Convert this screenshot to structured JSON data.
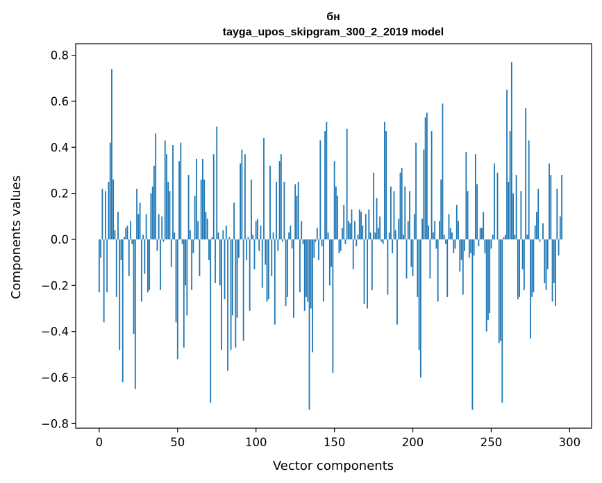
{
  "chart_data": {
    "type": "bar",
    "title_line1": "бн",
    "title_line2": "tayga_upos_skipgram_300_2_2019 model",
    "xlabel": "Vector components",
    "ylabel": "Components values",
    "xlim": [
      -15,
      314
    ],
    "ylim": [
      -0.82,
      0.85
    ],
    "x_ticks": [
      0,
      50,
      100,
      150,
      200,
      250,
      300
    ],
    "x_tick_labels": [
      "0",
      "50",
      "100",
      "150",
      "200",
      "250",
      "300"
    ],
    "y_ticks": [
      -0.8,
      -0.6,
      -0.4,
      -0.2,
      0.0,
      0.2,
      0.4,
      0.6,
      0.8
    ],
    "y_tick_labels": [
      "−0.8",
      "−0.6",
      "−0.4",
      "−0.2",
      "0.0",
      "0.2",
      "0.4",
      "0.6",
      "0.8"
    ],
    "bar_color": "#1f77b4",
    "values": [
      -0.23,
      -0.08,
      0.22,
      -0.36,
      0.21,
      -0.23,
      0.25,
      0.42,
      0.74,
      0.26,
      0.04,
      -0.25,
      0.12,
      -0.48,
      -0.09,
      -0.62,
      0.01,
      0.05,
      0.06,
      -0.16,
      0.08,
      -0.02,
      -0.41,
      -0.65,
      0.22,
      0.11,
      0.16,
      -0.27,
      0.02,
      -0.15,
      0.11,
      -0.23,
      -0.22,
      0.2,
      0.23,
      0.32,
      0.46,
      -0.05,
      0.11,
      -0.22,
      0.1,
      -0.01,
      0.43,
      0.37,
      0.25,
      0.21,
      -0.12,
      0.41,
      0.03,
      -0.36,
      -0.52,
      0.34,
      0.42,
      -0.02,
      -0.47,
      -0.2,
      -0.33,
      0.28,
      0.04,
      -0.22,
      -0.06,
      0.19,
      0.35,
      0.08,
      -0.16,
      0.26,
      0.35,
      0.26,
      0.12,
      0.09,
      -0.09,
      -0.71,
      0.01,
      0.37,
      -0.19,
      0.49,
      0.03,
      -0.2,
      -0.48,
      0.04,
      -0.26,
      0.06,
      -0.57,
      0.01,
      -0.48,
      -0.33,
      0.16,
      -0.47,
      -0.34,
      -0.08,
      0.33,
      0.39,
      -0.44,
      0.37,
      -0.09,
      0.01,
      -0.31,
      0.26,
      0.02,
      -0.13,
      0.08,
      0.09,
      -0.05,
      0.06,
      -0.21,
      0.44,
      -0.11,
      -0.27,
      -0.26,
      0.32,
      -0.16,
      0.03,
      -0.37,
      0.25,
      -0.05,
      0.34,
      0.37,
      -0.01,
      0.25,
      -0.29,
      -0.25,
      0.03,
      0.06,
      -0.04,
      -0.34,
      0.24,
      0.19,
      0.25,
      -0.23,
      0.08,
      -0.02,
      -0.31,
      -0.25,
      -0.27,
      -0.74,
      -0.3,
      -0.49,
      -0.08,
      -0.01,
      0.05,
      -0.09,
      0.43,
      -0.03,
      -0.27,
      0.47,
      0.51,
      0.03,
      -0.2,
      -0.12,
      -0.58,
      0.34,
      0.23,
      0.19,
      -0.06,
      -0.05,
      0.05,
      0.15,
      -0.02,
      0.48,
      0.08,
      0.07,
      0.13,
      -0.13,
      0.08,
      -0.03,
      0.02,
      0.13,
      0.12,
      0.06,
      -0.28,
      0.11,
      -0.3,
      0.13,
      0.03,
      -0.22,
      0.29,
      0.03,
      0.18,
      0.05,
      0.1,
      -0.01,
      -0.02,
      0.51,
      0.47,
      -0.24,
      0.03,
      0.23,
      -0.06,
      0.21,
      0.04,
      -0.37,
      0.09,
      0.29,
      0.31,
      0.02,
      0.23,
      -0.17,
      0.08,
      0.21,
      -0.12,
      -0.16,
      0.11,
      0.42,
      -0.25,
      -0.48,
      -0.6,
      0.09,
      0.39,
      0.53,
      0.55,
      0.06,
      -0.17,
      0.47,
      0.03,
      0.08,
      -0.04,
      -0.27,
      0.08,
      0.26,
      0.59,
      0.02,
      -0.02,
      -0.25,
      0.11,
      0.05,
      0.03,
      -0.06,
      -0.04,
      0.15,
      0.08,
      -0.14,
      -0.09,
      -0.24,
      -0.05,
      0.38,
      0.21,
      -0.08,
      -0.06,
      -0.74,
      -0.07,
      0.37,
      0.24,
      -0.03,
      0.05,
      0.05,
      0.12,
      -0.06,
      -0.4,
      -0.35,
      -0.32,
      -0.04,
      0.02,
      0.33,
      0.0,
      0.29,
      -0.45,
      -0.44,
      -0.71,
      0.01,
      0.02,
      0.65,
      0.25,
      0.47,
      0.77,
      0.2,
      0.02,
      0.28,
      -0.26,
      -0.25,
      0.21,
      -0.13,
      -0.22,
      0.57,
      0.02,
      0.43,
      -0.43,
      -0.25,
      -0.23,
      0.06,
      0.12,
      0.22,
      -0.01,
      0.0,
      0.07,
      -0.19,
      -0.22,
      -0.13,
      0.33,
      0.28,
      -0.27,
      -0.19,
      -0.29,
      0.22,
      -0.07,
      0.1,
      0.28
    ]
  }
}
